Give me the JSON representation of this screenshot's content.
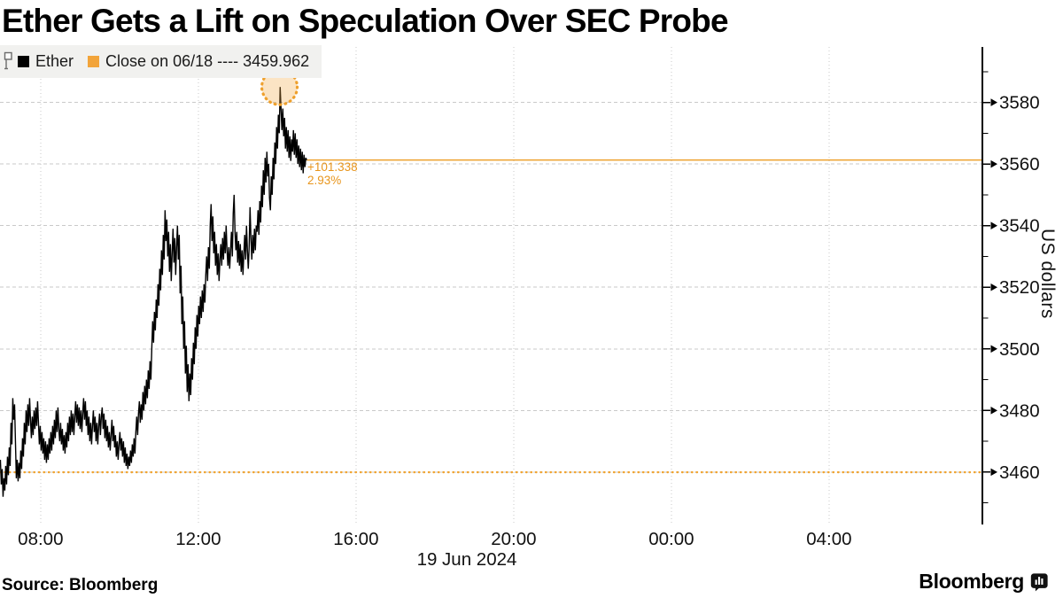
{
  "title": "Ether Gets a Lift on Speculation Over SEC Probe",
  "legend": {
    "tracker_icon": "annotation-tracker-icon",
    "series_label": "Ether",
    "close_label": "Close on 06/18 ---- 3459.962"
  },
  "annotation": {
    "change": "+101.338",
    "pct": "2.93%"
  },
  "footer": {
    "source": "Source:  Bloomberg",
    "brand": "Bloomberg",
    "brand_icon": "bloomberg-bubble-chart-icon"
  },
  "colors": {
    "accent": "#EEA02D",
    "accent_dotted": "#F0A432",
    "accent_text": "#E8951C",
    "accent_fill": "#F3A63A",
    "series_line": "#000000",
    "grid": "#C9C9C9",
    "legend_bg": "#F1F1EF",
    "legend_orange": "#F2A43A"
  },
  "chart_data": {
    "type": "line",
    "title": "Ether price, 19 Jun 2024 intraday",
    "ylabel": "US dollars",
    "date_label": "19 Jun 2024",
    "grid": true,
    "legend_position": "top-left",
    "ylim": [
      3443,
      3598
    ],
    "y_ticks": [
      3460,
      3480,
      3500,
      3520,
      3540,
      3560,
      3580
    ],
    "y_minor_ticks": [
      3450,
      3470,
      3490,
      3510,
      3530,
      3550,
      3570,
      3590
    ],
    "xlim_hours": [
      6.97,
      31.89
    ],
    "x_ticks": [
      {
        "label": "08:00",
        "hour": 8
      },
      {
        "label": "12:00",
        "hour": 12
      },
      {
        "label": "16:00",
        "hour": 16
      },
      {
        "label": "20:00",
        "hour": 20
      },
      {
        "label": "00:00",
        "hour": 24
      },
      {
        "label": "04:00",
        "hour": 28
      }
    ],
    "close_line": {
      "value": 3459.962,
      "label": "Close on 06/18 ---- 3459.962"
    },
    "last_price": {
      "value": 3561.3,
      "change": "+101.338",
      "pct_change": "2.93%"
    },
    "peak_marker": {
      "hour": 14.06,
      "value": 3585
    },
    "series": {
      "name": "Ether",
      "start_hour": 6.98,
      "end_hour": 14.75,
      "prices": [
        3464,
        3456,
        3461,
        3452,
        3458,
        3454,
        3462,
        3456,
        3465,
        3459,
        3468,
        3462,
        3476,
        3469,
        3484,
        3477,
        3482,
        3470,
        3458,
        3464,
        3457,
        3463,
        3458,
        3467,
        3461,
        3471,
        3465,
        3476,
        3469,
        3480,
        3473,
        3482,
        3475,
        3484,
        3477,
        3471,
        3478,
        3472,
        3480,
        3474,
        3481,
        3475,
        3483,
        3476,
        3469,
        3475,
        3467,
        3473,
        3466,
        3471,
        3464,
        3470,
        3463,
        3469,
        3464,
        3471,
        3466,
        3473,
        3467,
        3475,
        3469,
        3477,
        3471,
        3480,
        3473,
        3481,
        3474,
        3470,
        3476,
        3469,
        3474,
        3467,
        3472,
        3466,
        3473,
        3468,
        3476,
        3470,
        3478,
        3472,
        3480,
        3473,
        3479,
        3472,
        3478,
        3483,
        3476,
        3482,
        3475,
        3481,
        3474,
        3480,
        3473,
        3479,
        3484,
        3477,
        3483,
        3475,
        3480,
        3472,
        3478,
        3470,
        3476,
        3469,
        3475,
        3480,
        3473,
        3478,
        3470,
        3476,
        3469,
        3475,
        3479,
        3472,
        3478,
        3481,
        3474,
        3479,
        3471,
        3477,
        3470,
        3475,
        3468,
        3473,
        3467,
        3472,
        3477,
        3470,
        3475,
        3468,
        3472,
        3465,
        3470,
        3464,
        3469,
        3473,
        3467,
        3471,
        3465,
        3470,
        3463,
        3468,
        3462,
        3466,
        3461,
        3465,
        3462,
        3467,
        3463,
        3469,
        3465,
        3471,
        3466,
        3473,
        3478,
        3472,
        3479,
        3483,
        3476,
        3482,
        3477,
        3486,
        3480,
        3488,
        3482,
        3490,
        3484,
        3493,
        3487,
        3496,
        3490,
        3500,
        3509,
        3502,
        3512,
        3506,
        3516,
        3510,
        3521,
        3514,
        3526,
        3519,
        3532,
        3524,
        3537,
        3529,
        3545,
        3535,
        3542,
        3530,
        3538,
        3525,
        3534,
        3522,
        3531,
        3539,
        3528,
        3536,
        3524,
        3533,
        3540,
        3529,
        3537,
        3518,
        3527,
        3508,
        3517,
        3500,
        3509,
        3492,
        3501,
        3486,
        3495,
        3483,
        3492,
        3485,
        3497,
        3490,
        3502,
        3495,
        3507,
        3500,
        3511,
        3504,
        3514,
        3508,
        3517,
        3510,
        3519,
        3512,
        3521,
        3515,
        3524,
        3530,
        3522,
        3533,
        3526,
        3540,
        3547,
        3535,
        3543,
        3531,
        3538,
        3527,
        3534,
        3524,
        3531,
        3522,
        3529,
        3534,
        3527,
        3536,
        3529,
        3538,
        3531,
        3540,
        3532,
        3527,
        3533,
        3526,
        3532,
        3538,
        3530,
        3544,
        3550,
        3538,
        3532,
        3538,
        3528,
        3535,
        3527,
        3534,
        3525,
        3532,
        3524,
        3531,
        3537,
        3529,
        3540,
        3532,
        3526,
        3533,
        3546,
        3536,
        3529,
        3537,
        3531,
        3539,
        3532,
        3540,
        3538,
        3545,
        3537,
        3548,
        3541,
        3553,
        3546,
        3558,
        3550,
        3562,
        3554,
        3564,
        3556,
        3560,
        3549,
        3545,
        3556,
        3550,
        3562,
        3555,
        3567,
        3560,
        3572,
        3565,
        3576,
        3570,
        3585,
        3578,
        3571,
        3578,
        3569,
        3575,
        3565,
        3572,
        3564,
        3571,
        3562,
        3569,
        3561,
        3568,
        3564,
        3571,
        3563,
        3570,
        3562,
        3568,
        3560,
        3566,
        3559,
        3565,
        3558,
        3564,
        3557,
        3563,
        3559,
        3562,
        3561.3
      ]
    }
  }
}
